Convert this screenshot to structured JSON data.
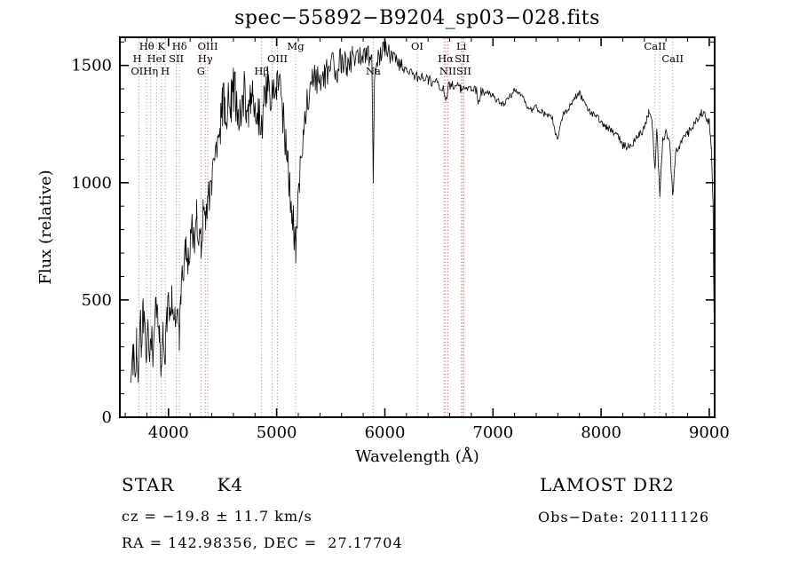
{
  "title": "spec−55892−B9204_sp03−028.fits",
  "chart_data": {
    "type": "line",
    "title": "spec−55892−B9204_sp03−028.fits",
    "xlabel": "Wavelength (Å)",
    "ylabel": "Flux (relative)",
    "xlim": [
      3550,
      9050
    ],
    "ylim": [
      0,
      1620
    ],
    "x_ticks": [
      4000,
      5000,
      6000,
      7000,
      8000,
      9000
    ],
    "y_ticks": [
      0,
      500,
      1000,
      1500
    ],
    "x_minor_step": 200,
    "y_minor_step": 100,
    "grid": false,
    "legend": "none",
    "series": [
      {
        "name": "spectrum",
        "x": [
          3650,
          3672,
          3690,
          3705,
          3720,
          3735,
          3750,
          3765,
          3780,
          3795,
          3810,
          3825,
          3840,
          3855,
          3870,
          3885,
          3900,
          3915,
          3934,
          3950,
          3970,
          3985,
          4000,
          4015,
          4030,
          4045,
          4060,
          4080,
          4100,
          4115,
          4130,
          4145,
          4160,
          4180,
          4200,
          4220,
          4240,
          4260,
          4280,
          4300,
          4320,
          4340,
          4360,
          4380,
          4400,
          4420,
          4440,
          4460,
          4480,
          4500,
          4520,
          4540,
          4560,
          4580,
          4600,
          4620,
          4640,
          4660,
          4680,
          4700,
          4720,
          4740,
          4760,
          4780,
          4800,
          4830,
          4861,
          4880,
          4900,
          4920,
          4940,
          4960,
          4980,
          5000,
          5020,
          5040,
          5060,
          5080,
          5100,
          5120,
          5140,
          5160,
          5175,
          5190,
          5210,
          5230,
          5250,
          5270,
          5300,
          5330,
          5360,
          5400,
          5450,
          5500,
          5550,
          5600,
          5650,
          5700,
          5750,
          5800,
          5850,
          5880,
          5893,
          5906,
          5950,
          6000,
          6050,
          6100,
          6150,
          6200,
          6250,
          6300,
          6350,
          6400,
          6450,
          6500,
          6540,
          6563,
          6590,
          6650,
          6700,
          6750,
          6800,
          6850,
          6867,
          6890,
          6950,
          7000,
          7050,
          7100,
          7150,
          7200,
          7250,
          7300,
          7350,
          7400,
          7450,
          7500,
          7550,
          7594,
          7650,
          7700,
          7750,
          7800,
          7850,
          7900,
          7950,
          8000,
          8050,
          8100,
          8150,
          8200,
          8250,
          8300,
          8350,
          8400,
          8440,
          8470,
          8498,
          8515,
          8542,
          8570,
          8600,
          8630,
          8662,
          8690,
          8720,
          8750,
          8800,
          8850,
          8900,
          8930,
          8960,
          9000,
          9020,
          9035,
          9045,
          9050
        ],
        "y": [
          130,
          260,
          150,
          330,
          180,
          430,
          300,
          480,
          340,
          230,
          330,
          210,
          330,
          260,
          420,
          470,
          390,
          320,
          230,
          340,
          270,
          400,
          460,
          390,
          480,
          400,
          430,
          410,
          350,
          520,
          590,
          660,
          700,
          640,
          730,
          800,
          760,
          850,
          790,
          730,
          860,
          800,
          900,
          960,
          1010,
          1060,
          1130,
          1200,
          1260,
          1310,
          1350,
          1300,
          1380,
          1340,
          1400,
          1370,
          1310,
          1280,
          1340,
          1380,
          1330,
          1290,
          1340,
          1380,
          1350,
          1300,
          1210,
          1330,
          1400,
          1430,
          1380,
          1400,
          1420,
          1440,
          1400,
          1350,
          1280,
          1190,
          1090,
          990,
          890,
          800,
          720,
          850,
          1010,
          1150,
          1250,
          1310,
          1380,
          1420,
          1450,
          1430,
          1470,
          1500,
          1480,
          1520,
          1500,
          1540,
          1520,
          1560,
          1540,
          1500,
          980,
          1480,
          1540,
          1570,
          1545,
          1520,
          1500,
          1490,
          1470,
          1450,
          1460,
          1440,
          1430,
          1420,
          1400,
          1340,
          1410,
          1420,
          1400,
          1410,
          1400,
          1390,
          1340,
          1390,
          1380,
          1370,
          1350,
          1330,
          1360,
          1400,
          1380,
          1340,
          1310,
          1320,
          1300,
          1290,
          1270,
          1180,
          1290,
          1320,
          1360,
          1380,
          1340,
          1300,
          1280,
          1260,
          1240,
          1220,
          1200,
          1160,
          1150,
          1170,
          1200,
          1230,
          1300,
          1280,
          1060,
          1230,
          950,
          1180,
          1210,
          1190,
          940,
          1130,
          1160,
          1180,
          1210,
          1240,
          1280,
          1300,
          1290,
          1260,
          1150,
          900,
          400,
          80
        ]
      }
    ],
    "spectral_lines": [
      {
        "wl": 3727,
        "color": "gray"
      },
      {
        "wl": 3798,
        "color": "gray"
      },
      {
        "wl": 3835,
        "color": "gray"
      },
      {
        "wl": 3889,
        "color": "gray"
      },
      {
        "wl": 3934,
        "color": "gray"
      },
      {
        "wl": 3970,
        "color": "gray"
      },
      {
        "wl": 4072,
        "color": "gray"
      },
      {
        "wl": 4102,
        "color": "gray"
      },
      {
        "wl": 4300,
        "color": "gray"
      },
      {
        "wl": 4340,
        "color": "red"
      },
      {
        "wl": 4363,
        "color": "red"
      },
      {
        "wl": 4861,
        "color": "gray"
      },
      {
        "wl": 4959,
        "color": "gray"
      },
      {
        "wl": 5007,
        "color": "gray"
      },
      {
        "wl": 5175,
        "color": "gray"
      },
      {
        "wl": 5893,
        "color": "gray"
      },
      {
        "wl": 6300,
        "color": "gray"
      },
      {
        "wl": 6548,
        "color": "red"
      },
      {
        "wl": 6563,
        "color": "red"
      },
      {
        "wl": 6583,
        "color": "red"
      },
      {
        "wl": 6708,
        "color": "gray"
      },
      {
        "wl": 6716,
        "color": "red"
      },
      {
        "wl": 6731,
        "color": "red"
      },
      {
        "wl": 8498,
        "color": "gray"
      },
      {
        "wl": 8542,
        "color": "gray"
      },
      {
        "wl": 8662,
        "color": "gray"
      }
    ],
    "line_labels": [
      {
        "text": "Hθ",
        "wl": 3798,
        "row": 1
      },
      {
        "text": "K",
        "wl": 3934,
        "row": 1
      },
      {
        "text": "Hδ",
        "wl": 4102,
        "row": 1
      },
      {
        "text": "OIII",
        "wl": 4363,
        "row": 1
      },
      {
        "text": "Mg",
        "wl": 5175,
        "row": 1
      },
      {
        "text": "OI",
        "wl": 6300,
        "row": 1
      },
      {
        "text": "Li",
        "wl": 6708,
        "row": 1
      },
      {
        "text": "CaII",
        "wl": 8498,
        "row": 1
      },
      {
        "text": "H",
        "wl": 3712,
        "row": 2
      },
      {
        "text": "HeI",
        "wl": 3889,
        "row": 2
      },
      {
        "text": "SII",
        "wl": 4072,
        "row": 2
      },
      {
        "text": "Hγ",
        "wl": 4340,
        "row": 2
      },
      {
        "text": "OIII",
        "wl": 5007,
        "row": 2
      },
      {
        "text": "Hα",
        "wl": 6563,
        "row": 2
      },
      {
        "text": "SII",
        "wl": 6716,
        "row": 2
      },
      {
        "text": "CaII",
        "wl": 8662,
        "row": 2
      },
      {
        "text": "OII",
        "wl": 3727,
        "row": 3
      },
      {
        "text": "Hη",
        "wl": 3835,
        "row": 3
      },
      {
        "text": "H",
        "wl": 3970,
        "row": 3
      },
      {
        "text": "G",
        "wl": 4300,
        "row": 3
      },
      {
        "text": "Hβ",
        "wl": 4861,
        "row": 3
      },
      {
        "text": "Na",
        "wl": 5893,
        "row": 3
      },
      {
        "text": "NII",
        "wl": 6583,
        "row": 3
      },
      {
        "text": "SII",
        "wl": 6731,
        "row": 3
      }
    ],
    "line_colors": {
      "gray": "#8f8f8f",
      "red": "#cc5a5a"
    }
  },
  "footer": {
    "object_type": "STAR",
    "subclass": "K4",
    "survey": "LAMOST DR2",
    "cz_line": "cz = −19.8 ± 11.7 km/s",
    "obs_date_line": "Obs−Date: 20111126",
    "coords_line": "RA = 142.98356, DEC =  27.17704"
  }
}
